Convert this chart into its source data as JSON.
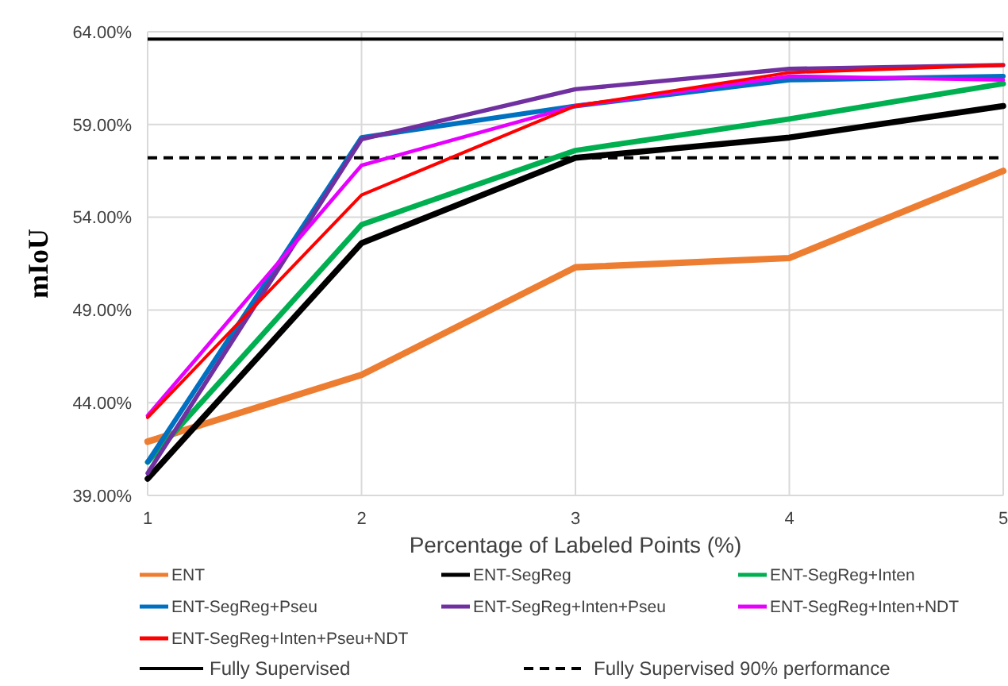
{
  "chart_data": {
    "type": "line",
    "xlabel": "Percentage of Labeled Points (%)",
    "ylabel": "mIoU",
    "x": [
      1,
      2,
      3,
      4,
      5
    ],
    "xlim": [
      1,
      5
    ],
    "xticks": [
      1,
      2,
      3,
      4,
      5
    ],
    "ylim": [
      39,
      64
    ],
    "yticks": [
      {
        "value": 39,
        "label": "39.00%"
      },
      {
        "value": 44,
        "label": "44.00%"
      },
      {
        "value": 49,
        "label": "49.00%"
      },
      {
        "value": 54,
        "label": "54.00%"
      },
      {
        "value": 59,
        "label": "59.00%"
      },
      {
        "value": 64,
        "label": "64.00%"
      }
    ],
    "grid": true,
    "legend": "bottom",
    "marker": "none",
    "line_style": "solid",
    "series": [
      {
        "name": "ENT",
        "color": "#ed7d31",
        "values": [
          41.9,
          45.5,
          51.3,
          51.8,
          56.5
        ]
      },
      {
        "name": "ENT-SegReg",
        "color": "#000000",
        "values": [
          39.9,
          52.6,
          57.2,
          58.3,
          60.0
        ]
      },
      {
        "name": "ENT-SegReg+Inten",
        "color": "#00b050",
        "values": [
          40.8,
          53.6,
          57.6,
          59.3,
          61.2
        ]
      },
      {
        "name": "ENT-SegReg+Pseu",
        "color": "#0070c0",
        "values": [
          40.8,
          58.3,
          60.0,
          61.4,
          61.6
        ]
      },
      {
        "name": "ENT-SegReg+Inten+Pseu",
        "color": "#7030a0",
        "values": [
          40.2,
          58.2,
          60.9,
          62.0,
          62.2
        ]
      },
      {
        "name": "ENT-SegReg+Inten+NDT",
        "color": "#e600ff",
        "values": [
          43.3,
          56.8,
          60.0,
          61.6,
          61.4
        ]
      },
      {
        "name": "ENT-SegReg+Inten+Pseu+NDT",
        "color": "#ff0000",
        "values": [
          43.2,
          55.2,
          60.0,
          61.8,
          62.2
        ]
      }
    ],
    "ref_lines": [
      {
        "axis": "y",
        "value": 63.6,
        "label": "Fully Supervised",
        "color": "#000000",
        "line_style": "solid"
      },
      {
        "axis": "y",
        "value": 57.2,
        "label": "Fully Supervised 90% performance",
        "color": "#000000",
        "line_style": "dashed"
      }
    ]
  }
}
